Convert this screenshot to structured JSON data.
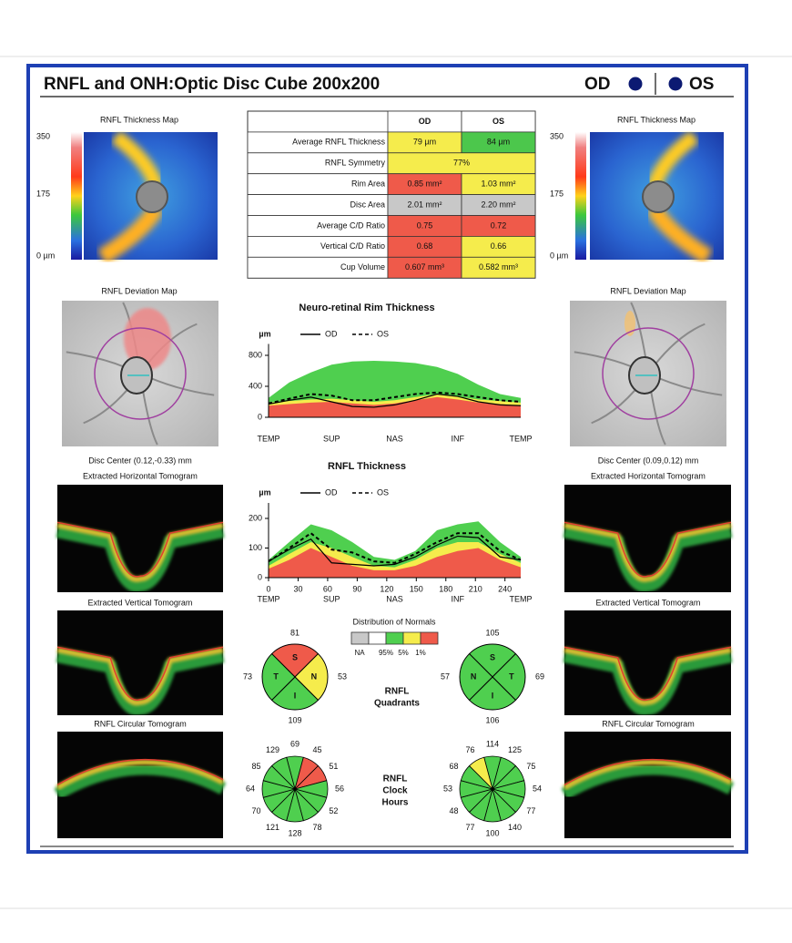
{
  "header": {
    "title": "RNFL and ONH:Optic Disc Cube 200x200",
    "od": "OD",
    "os": "OS"
  },
  "eyes": [
    {
      "thickness_map_label": "RNFL Thickness Map",
      "scale": [
        "350",
        "175",
        "0 µm"
      ],
      "deviation_label": "RNFL Deviation Map",
      "disc_center": "Disc Center  (0.12,-0.33) mm",
      "horizontal_label": "Extracted Horizontal Tomogram",
      "vertical_label": "Extracted Vertical Tomogram",
      "circular_label": "RNFL Circular Tomogram"
    },
    {
      "thickness_map_label": "RNFL Thickness Map",
      "scale": [
        "350",
        "175",
        "0 µm"
      ],
      "deviation_label": "RNFL Deviation Map",
      "disc_center": "Disc Center  (0.09,0.12) mm",
      "horizontal_label": "Extracted Horizontal Tomogram",
      "vertical_label": "Extracted Vertical Tomogram",
      "circular_label": "RNFL Circular Tomogram"
    }
  ],
  "table": {
    "columns": [
      "OD",
      "OS"
    ],
    "rows": [
      {
        "label": "Average RNFL Thickness",
        "od": "79 µm",
        "os": "84 µm",
        "od_color": "#f5ec4c",
        "os_color": "#4cc74c"
      },
      {
        "label": "RNFL Symmetry",
        "value": "77%",
        "color": "#f5ec4c"
      },
      {
        "label": "Rim Area",
        "od": "0.85 mm²",
        "os": "1.03 mm²",
        "od_color": "#ef5a4a",
        "os_color": "#f5ec4c"
      },
      {
        "label": "Disc Area",
        "od": "2.01 mm²",
        "os": "2.20 mm²",
        "od_color": "#c8c8c8",
        "os_color": "#c8c8c8"
      },
      {
        "label": "Average C/D Ratio",
        "od": "0.75",
        "os": "0.72",
        "od_color": "#ef5a4a",
        "os_color": "#ef5a4a"
      },
      {
        "label": "Vertical C/D Ratio",
        "od": "0.68",
        "os": "0.66",
        "od_color": "#ef5a4a",
        "os_color": "#f5ec4c"
      },
      {
        "label": "Cup Volume",
        "od": "0.607 mm³",
        "os": "0.582 mm³",
        "od_color": "#ef5a4a",
        "os_color": "#f5ec4c"
      }
    ]
  },
  "rim_chart": {
    "title": "Neuro-retinal Rim Thickness",
    "unit": "µm",
    "categories": [
      "TEMP",
      "SUP",
      "NAS",
      "INF",
      "TEMP"
    ],
    "xlim": [
      0,
      256
    ],
    "ylim": [
      0,
      900
    ],
    "yticks": [
      0,
      400,
      800
    ],
    "x": [
      0,
      21,
      43,
      64,
      85,
      107,
      128,
      149,
      171,
      192,
      213,
      235,
      256
    ],
    "bands": [
      {
        "color": "#4fcf4f",
        "values": [
          250,
          450,
          580,
          680,
          720,
          730,
          720,
          700,
          650,
          560,
          420,
          300,
          250
        ]
      },
      {
        "color": "#f5ec4c",
        "values": [
          190,
          210,
          230,
          240,
          220,
          200,
          220,
          260,
          300,
          270,
          230,
          210,
          190
        ]
      },
      {
        "color": "#ef5a4a",
        "values": [
          150,
          170,
          190,
          200,
          180,
          160,
          180,
          220,
          260,
          230,
          190,
          170,
          150
        ]
      }
    ],
    "series": [
      {
        "name": "OD",
        "dashed": false,
        "values": [
          170,
          220,
          260,
          200,
          140,
          130,
          160,
          220,
          300,
          270,
          200,
          160,
          150
        ]
      },
      {
        "name": "OS",
        "dashed": true,
        "values": [
          180,
          240,
          300,
          280,
          220,
          220,
          260,
          300,
          320,
          300,
          260,
          220,
          200
        ]
      }
    ]
  },
  "rnfl_chart": {
    "title": "RNFL Thickness",
    "unit": "µm",
    "categories": [
      "TEMP",
      "SUP",
      "NAS",
      "INF",
      "TEMP"
    ],
    "xlim": [
      0,
      256
    ],
    "ylim": [
      0,
      240
    ],
    "yticks": [
      0,
      100,
      200
    ],
    "xticks": [
      0,
      30,
      60,
      90,
      120,
      150,
      180,
      210,
      240
    ],
    "x": [
      0,
      21,
      43,
      64,
      85,
      107,
      128,
      149,
      171,
      192,
      213,
      235,
      256
    ],
    "bands": [
      {
        "color": "#4fcf4f",
        "values": [
          60,
          120,
          180,
          160,
          120,
          70,
          60,
          90,
          160,
          180,
          190,
          120,
          70
        ]
      },
      {
        "color": "#f5ec4c",
        "values": [
          40,
          80,
          120,
          100,
          70,
          40,
          35,
          60,
          100,
          120,
          120,
          80,
          50
        ]
      },
      {
        "color": "#ef5a4a",
        "values": [
          30,
          60,
          100,
          70,
          40,
          25,
          25,
          40,
          70,
          90,
          100,
          60,
          35
        ]
      }
    ],
    "series": [
      {
        "name": "OD",
        "dashed": false,
        "values": [
          55,
          95,
          130,
          50,
          45,
          40,
          45,
          70,
          110,
          140,
          135,
          70,
          60
        ]
      },
      {
        "name": "OS",
        "dashed": true,
        "values": [
          55,
          100,
          150,
          95,
          85,
          55,
          50,
          80,
          120,
          150,
          150,
          90,
          60
        ]
      }
    ]
  },
  "distribution": {
    "title": "Distribution of Normals",
    "colors": [
      "#c8c8c8",
      "#ffffff",
      "#4fcf4f",
      "#f5ec4c",
      "#ef5a4a"
    ],
    "labels": [
      "NA",
      "95%",
      "5%",
      "1%"
    ]
  },
  "quadrants": {
    "label": [
      "RNFL",
      "Quadrants"
    ],
    "od": [
      {
        "name": "S",
        "value": 81,
        "color": "#ef5a4a"
      },
      {
        "name": "N",
        "value": 53,
        "color": "#f5ec4c"
      },
      {
        "name": "I",
        "value": 109,
        "color": "#4fcf4f"
      },
      {
        "name": "T",
        "value": 73,
        "color": "#4fcf4f"
      }
    ],
    "os": [
      {
        "name": "S",
        "value": 105,
        "color": "#4fcf4f"
      },
      {
        "name": "T",
        "value": 69,
        "color": "#4fcf4f"
      },
      {
        "name": "I",
        "value": 106,
        "color": "#4fcf4f"
      },
      {
        "name": "N",
        "value": 57,
        "color": "#4fcf4f"
      }
    ]
  },
  "clock": {
    "label": [
      "RNFL",
      "Clock",
      "Hours"
    ],
    "od": {
      "values": [
        69,
        45,
        51,
        56,
        52,
        78,
        128,
        121,
        70,
        64,
        85,
        129
      ],
      "colors": [
        "#4fcf4f",
        "#ef5a4a",
        "#ef5a4a",
        "#4fcf4f",
        "#4fcf4f",
        "#4fcf4f",
        "#4fcf4f",
        "#4fcf4f",
        "#4fcf4f",
        "#4fcf4f",
        "#4fcf4f",
        "#4fcf4f"
      ]
    },
    "os": {
      "values": [
        114,
        125,
        75,
        54,
        77,
        140,
        100,
        77,
        48,
        53,
        68,
        76
      ],
      "colors": [
        "#4fcf4f",
        "#4fcf4f",
        "#4fcf4f",
        "#4fcf4f",
        "#4fcf4f",
        "#4fcf4f",
        "#4fcf4f",
        "#4fcf4f",
        "#4fcf4f",
        "#4fcf4f",
        "#4fcf4f",
        "#f5ec4c"
      ]
    }
  }
}
